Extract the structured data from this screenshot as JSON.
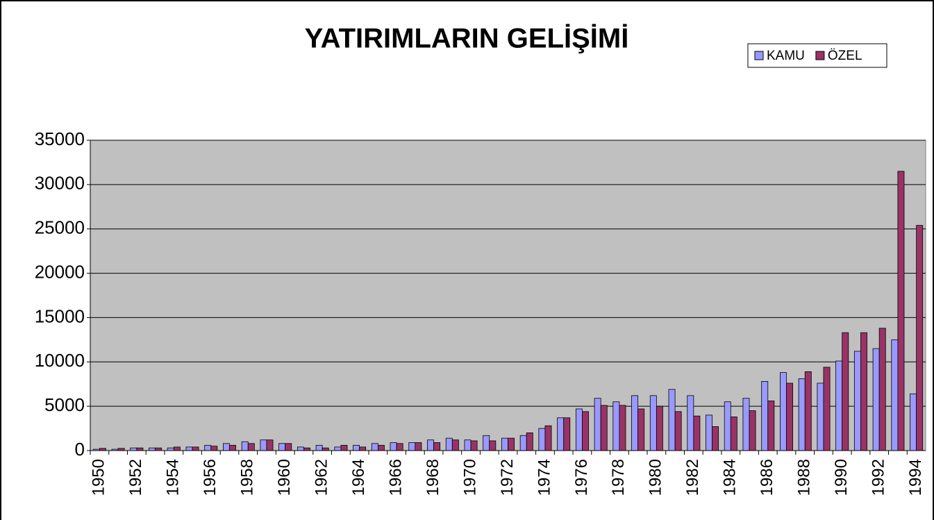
{
  "chart_data": {
    "type": "bar",
    "title": "YATIRIMLARIN GELİŞİMİ",
    "categories": [
      "1950",
      null,
      "1952",
      null,
      "1954",
      null,
      "1956",
      null,
      "1958",
      null,
      "1960",
      null,
      "1962",
      null,
      "1964",
      null,
      "1966",
      null,
      "1968",
      null,
      "1970",
      null,
      "1972",
      null,
      "1974",
      null,
      "1976",
      null,
      "1978",
      null,
      "1980",
      null,
      "1982",
      null,
      "1984",
      null,
      "1986",
      null,
      "1988",
      null,
      "1990",
      null,
      "1992",
      null,
      "1994"
    ],
    "series": [
      {
        "name": "KAMU",
        "color": "#9999ff",
        "values": [
          150,
          150,
          300,
          300,
          300,
          400,
          600,
          800,
          1000,
          1200,
          800,
          400,
          600,
          400,
          600,
          800,
          900,
          900,
          1200,
          1400,
          1200,
          1700,
          1400,
          1700,
          2500,
          3700,
          4700,
          5900,
          5500,
          6200,
          6200,
          6900,
          6200,
          4000,
          5500,
          5900,
          7800,
          8800,
          8100,
          7600,
          10100,
          11200,
          11500,
          12500,
          6400
        ]
      },
      {
        "name": "ÖZEL",
        "color": "#993366",
        "values": [
          250,
          250,
          300,
          300,
          400,
          400,
          500,
          600,
          800,
          1200,
          800,
          300,
          300,
          600,
          400,
          600,
          800,
          900,
          900,
          1200,
          1100,
          1100,
          1400,
          2000,
          2800,
          3700,
          4400,
          5100,
          5100,
          4700,
          5000,
          4400,
          3900,
          2700,
          3800,
          4500,
          5600,
          7600,
          8900,
          9400,
          13300,
          13300,
          13800,
          31500,
          25400
        ]
      }
    ],
    "ylim": [
      0,
      35000
    ],
    "yticks": [
      0,
      5000,
      10000,
      15000,
      20000,
      25000,
      30000,
      35000
    ],
    "grid": true,
    "legend": "top-right",
    "plot_background": "#c0c0c0"
  }
}
